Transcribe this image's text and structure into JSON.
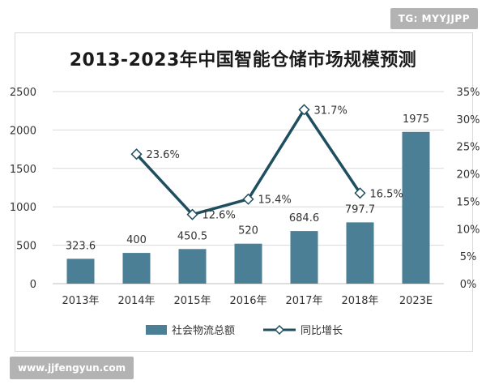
{
  "badge": "TG: MYYJJPP",
  "watermark": "www.jjfengyun.com",
  "chart_data": {
    "type": "bar",
    "title": "2013-2023年中国智能仓储市场规模预测",
    "categories": [
      "2013年",
      "2014年",
      "2015年",
      "2016年",
      "2017年",
      "2018年",
      "2023E"
    ],
    "series": [
      {
        "name": "社会物流总额",
        "type": "bar",
        "axis": "left",
        "color": "#4a7f96",
        "values": [
          323.6,
          400,
          450.5,
          520,
          684.6,
          797.7,
          1975
        ],
        "labels": [
          "323.6",
          "400",
          "450.5",
          "520",
          "684.6",
          "797.7",
          "1975"
        ]
      },
      {
        "name": "同比增长",
        "type": "line",
        "axis": "right",
        "color": "#1f4e5f",
        "values": [
          null,
          23.6,
          12.6,
          15.4,
          31.7,
          16.5,
          null
        ],
        "labels": [
          "",
          "23.6%",
          "12.6%",
          "15.4%",
          "31.7%",
          "16.5%",
          ""
        ]
      }
    ],
    "y_left": {
      "min": 0,
      "max": 2500,
      "ticks": [
        "0",
        "500",
        "1000",
        "1500",
        "2000",
        "2500"
      ]
    },
    "y_right": {
      "min": 0,
      "max": 35,
      "ticks": [
        "0%",
        "5%",
        "10%",
        "15%",
        "20%",
        "25%",
        "30%",
        "35%"
      ]
    },
    "grid": true,
    "legend": "bottom"
  }
}
